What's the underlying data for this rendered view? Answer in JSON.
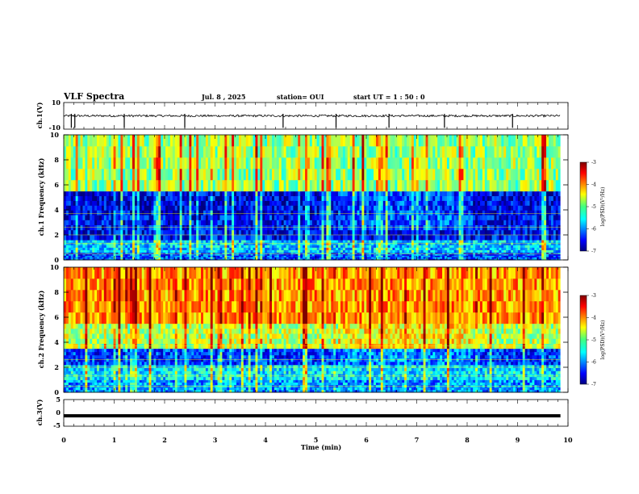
{
  "header": {
    "title": "VLF Spectra",
    "date": "Jul. 8 , 2025",
    "station": "station= OUI",
    "start": "start UT = 1 : 50 : 0"
  },
  "chart_data": [
    {
      "type": "line",
      "name": "ch1-waveform",
      "ylabel": "ch.1(V)",
      "ylim": [
        -10,
        10
      ],
      "yticks": [
        "10",
        "-10"
      ],
      "xlim": [
        0,
        10
      ],
      "baseline": 0,
      "spikes_min": [
        0.15,
        0.22,
        1.2,
        2.4,
        4.35,
        5.4,
        6.45,
        7.55,
        8.9
      ]
    },
    {
      "type": "heatmap",
      "name": "ch1-spectrogram",
      "ylabel": "ch.1 Frequency (kHz)",
      "ylim": [
        0,
        10
      ],
      "yticks": [
        "0",
        "2",
        "4",
        "6",
        "8",
        "10"
      ],
      "xlim": [
        0,
        10
      ],
      "data_xmax": 9.85,
      "colorbar": {
        "label": "log(PSD)(V²/Hz)",
        "range": [
          -7,
          -3
        ],
        "ticks": [
          "-3",
          "-4",
          "-5",
          "-6",
          "-7"
        ]
      },
      "bands_khz": [
        {
          "from": 0,
          "to": 0.6,
          "log_psd": -6.2
        },
        {
          "from": 0.6,
          "to": 1.6,
          "log_psd": -5.7
        },
        {
          "from": 1.6,
          "to": 3.6,
          "log_psd": -6.5
        },
        {
          "from": 3.6,
          "to": 5.5,
          "log_psd": -6.6
        },
        {
          "from": 5.5,
          "to": 10,
          "log_psd": -4.9
        }
      ]
    },
    {
      "type": "heatmap",
      "name": "ch2-spectrogram",
      "ylabel": "ch.2 Frequency (kHz)",
      "ylim": [
        0,
        10
      ],
      "yticks": [
        "0",
        "2",
        "4",
        "6",
        "8",
        "10"
      ],
      "xlim": [
        0,
        10
      ],
      "data_xmax": 9.85,
      "colorbar": {
        "label": "log(PSD)(V²/Hz)",
        "range": [
          -7,
          -3
        ],
        "ticks": [
          "-3",
          "-4",
          "-5",
          "-6",
          "-7"
        ]
      },
      "bands_khz": [
        {
          "from": 0,
          "to": 1.0,
          "log_psd": -5.9
        },
        {
          "from": 1.0,
          "to": 2.2,
          "log_psd": -5.6
        },
        {
          "from": 2.2,
          "to": 3.5,
          "log_psd": -6.3
        },
        {
          "from": 3.5,
          "to": 5.5,
          "log_psd": -4.8
        },
        {
          "from": 5.5,
          "to": 10,
          "log_psd": -4.1
        }
      ]
    },
    {
      "type": "line",
      "name": "ch3-waveform",
      "ylabel": "ch.3(V)",
      "ylim": [
        -5,
        5
      ],
      "yticks": [
        "5",
        "0",
        "-5"
      ],
      "xlim": [
        0,
        10
      ],
      "level": -1.1
    }
  ],
  "xaxis": {
    "label": "Time (min)",
    "ticks": [
      "0",
      "1",
      "2",
      "3",
      "4",
      "5",
      "6",
      "7",
      "8",
      "9",
      "10"
    ]
  }
}
